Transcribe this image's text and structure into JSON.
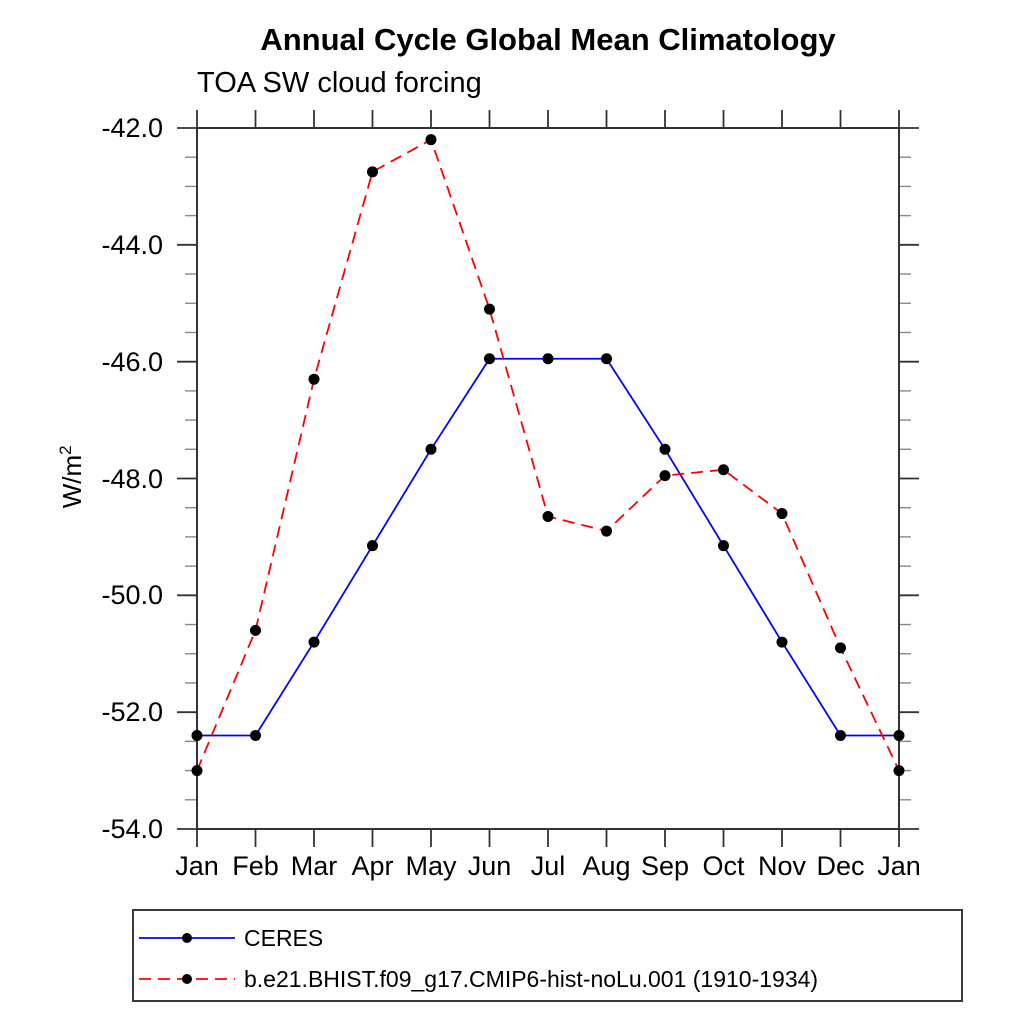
{
  "chart": {
    "title": "Annual Cycle Global Mean Climatology",
    "subtitle": "TOA SW cloud forcing",
    "ylabel_base": "W/m",
    "ylabel_sup": "2"
  },
  "chart_data": {
    "type": "line",
    "title": "Annual Cycle Global Mean Climatology",
    "subtitle": "TOA SW cloud forcing",
    "ylabel": "W/m^2",
    "xlabel": "",
    "x_categories": [
      "Jan",
      "Feb",
      "Mar",
      "Apr",
      "May",
      "Jun",
      "Jul",
      "Aug",
      "Sep",
      "Oct",
      "Nov",
      "Dec",
      "Jan"
    ],
    "y_axis": {
      "min": -54.0,
      "max": -42.0,
      "major_step": 2.0,
      "minor_step": 0.5,
      "tick_labels": [
        "-42.0",
        "-44.0",
        "-46.0",
        "-48.0",
        "-50.0",
        "-52.0",
        "-54.0"
      ]
    },
    "grid": false,
    "legend_position": "bottom-left-box",
    "series": [
      {
        "name": "CERES",
        "color": "#0000ff",
        "line_style": "solid",
        "marker": "filled-circle",
        "marker_color": "#000000",
        "values": [
          -52.4,
          -52.4,
          -50.8,
          -49.15,
          -47.5,
          -45.95,
          -45.95,
          -45.95,
          -47.5,
          -49.15,
          -50.8,
          -52.4,
          -52.4
        ]
      },
      {
        "name": "b.e21.BHIST.f09_g17.CMIP6-hist-noLu.001 (1910-1934)",
        "color": "#ff0000",
        "line_style": "dashed",
        "marker": "filled-circle",
        "marker_color": "#000000",
        "values": [
          -53.0,
          -50.6,
          -46.3,
          -42.75,
          -42.2,
          -45.1,
          -48.65,
          -48.9,
          -47.95,
          -47.85,
          -48.6,
          -50.9,
          -53.0
        ]
      }
    ]
  },
  "colors": {
    "axis": "#333333",
    "minor_tick": "#888888",
    "marker": "#000000",
    "text": "#000000",
    "background": "#ffffff"
  }
}
